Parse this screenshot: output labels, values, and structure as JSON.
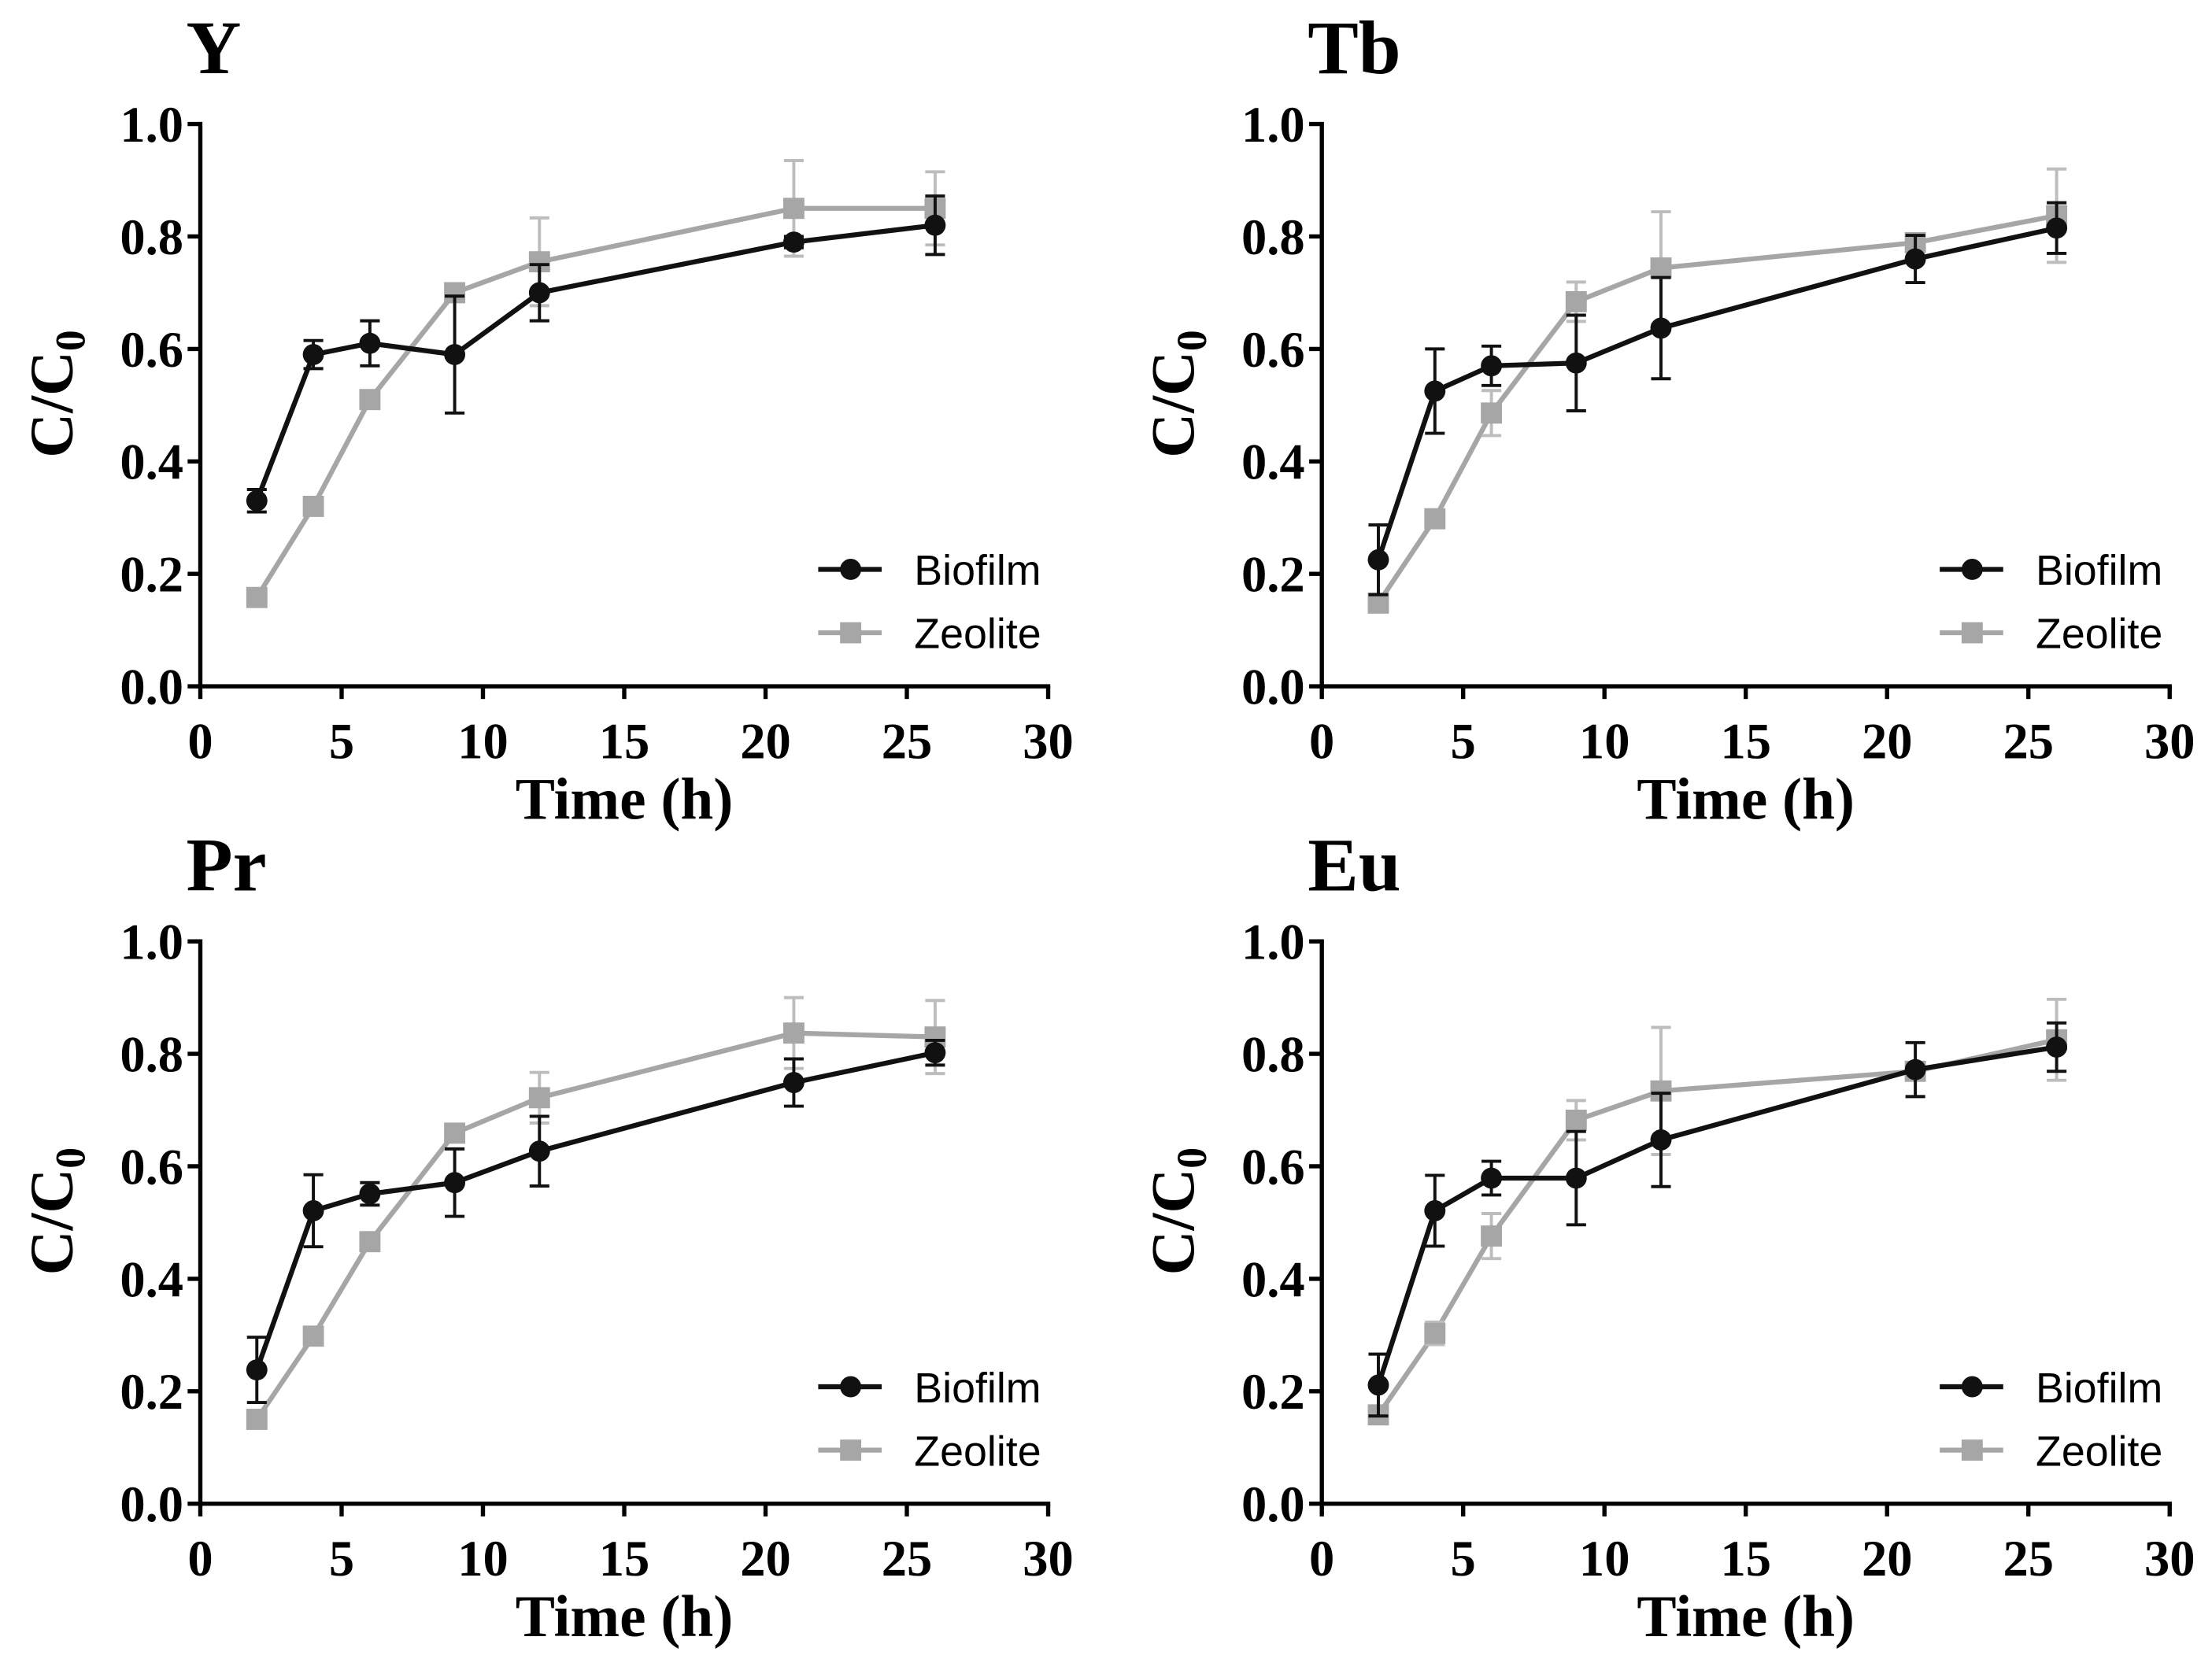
{
  "chart_data": [
    {
      "type": "line",
      "title": "Y",
      "xlabel": "Time (h)",
      "ylabel": {
        "text": "C/C",
        "subscript": "0"
      },
      "xlim": [
        0,
        30
      ],
      "ylim": [
        0,
        1
      ],
      "xticks": [
        0,
        5,
        10,
        15,
        20,
        25,
        30
      ],
      "xtick_labels": [
        "0",
        "5",
        "10",
        "15",
        "20",
        "25",
        "30"
      ],
      "yticks": [
        0,
        0.2,
        0.4,
        0.6,
        0.8,
        1.0
      ],
      "ytick_labels": [
        "0.0",
        "0.2",
        "0.4",
        "0.6",
        "0.8",
        "1.0"
      ],
      "grid": false,
      "legend": "bottom-right",
      "x": [
        2,
        4,
        6,
        9,
        12,
        21,
        26
      ],
      "series": [
        {
          "name": "Biofilm",
          "color": "#111111",
          "error_color": "#111111",
          "marker": "circle",
          "values": [
            0.33,
            0.59,
            0.61,
            0.59,
            0.7,
            0.79,
            0.82
          ],
          "err": [
            0.02,
            0.025,
            0.04,
            0.104,
            0.05,
            0.01,
            0.052
          ]
        },
        {
          "name": "Zeolite",
          "color": "#a6a6a6",
          "error_color": "#bdbdbd",
          "marker": "square",
          "values": [
            0.158,
            0.32,
            0.51,
            0.7,
            0.755,
            0.85,
            0.85
          ],
          "err": [
            0.01,
            0.01,
            0.012,
            0.012,
            0.078,
            0.085,
            0.065
          ]
        }
      ]
    },
    {
      "type": "line",
      "title": "Tb",
      "xlabel": "Time (h)",
      "ylabel": {
        "text": "C/C",
        "subscript": "0"
      },
      "xlim": [
        0,
        30
      ],
      "ylim": [
        0,
        1
      ],
      "xticks": [
        0,
        5,
        10,
        15,
        20,
        25,
        30
      ],
      "xtick_labels": [
        "0",
        "5",
        "10",
        "15",
        "20",
        "25",
        "30"
      ],
      "yticks": [
        0,
        0.2,
        0.4,
        0.6,
        0.8,
        1.0
      ],
      "ytick_labels": [
        "0.0",
        "0.2",
        "0.4",
        "0.6",
        "0.8",
        "1.0"
      ],
      "grid": false,
      "legend": "bottom-right",
      "x": [
        2,
        4,
        6,
        9,
        12,
        21,
        26
      ],
      "series": [
        {
          "name": "Biofilm",
          "color": "#111111",
          "error_color": "#111111",
          "marker": "circle",
          "values": [
            0.225,
            0.525,
            0.57,
            0.575,
            0.637,
            0.76,
            0.815
          ],
          "err": [
            0.062,
            0.075,
            0.035,
            0.085,
            0.09,
            0.042,
            0.045
          ]
        },
        {
          "name": "Zeolite",
          "color": "#a6a6a6",
          "error_color": "#bdbdbd",
          "marker": "square",
          "values": [
            0.148,
            0.298,
            0.486,
            0.684,
            0.744,
            0.789,
            0.837
          ],
          "err": [
            0.01,
            0.015,
            0.04,
            0.035,
            0.1,
            0.01,
            0.083
          ]
        }
      ]
    },
    {
      "type": "line",
      "title": "Pr",
      "xlabel": "Time (h)",
      "ylabel": {
        "text": "C/C",
        "subscript": "0"
      },
      "xlim": [
        0,
        30
      ],
      "ylim": [
        0,
        1
      ],
      "xticks": [
        0,
        5,
        10,
        15,
        20,
        25,
        30
      ],
      "xtick_labels": [
        "0",
        "5",
        "10",
        "15",
        "20",
        "25",
        "30"
      ],
      "yticks": [
        0,
        0.2,
        0.4,
        0.6,
        0.8,
        1.0
      ],
      "ytick_labels": [
        "0.0",
        "0.2",
        "0.4",
        "0.6",
        "0.8",
        "1.0"
      ],
      "grid": false,
      "legend": "bottom-right",
      "x": [
        2,
        4,
        6,
        9,
        12,
        21,
        26
      ],
      "series": [
        {
          "name": "Biofilm",
          "color": "#111111",
          "error_color": "#111111",
          "marker": "circle",
          "values": [
            0.238,
            0.521,
            0.551,
            0.571,
            0.627,
            0.749,
            0.802
          ],
          "err": [
            0.058,
            0.064,
            0.02,
            0.06,
            0.062,
            0.042,
            0.022
          ]
        },
        {
          "name": "Zeolite",
          "color": "#a6a6a6",
          "error_color": "#bdbdbd",
          "marker": "square",
          "values": [
            0.15,
            0.298,
            0.466,
            0.659,
            0.722,
            0.837,
            0.83
          ],
          "err": [
            0.01,
            0.01,
            0.01,
            0.01,
            0.045,
            0.063,
            0.065
          ]
        }
      ]
    },
    {
      "type": "line",
      "title": "Eu",
      "xlabel": "Time (h)",
      "ylabel": {
        "text": "C/C",
        "subscript": "0"
      },
      "xlim": [
        0,
        30
      ],
      "ylim": [
        0,
        1
      ],
      "xticks": [
        0,
        5,
        10,
        15,
        20,
        25,
        30
      ],
      "xtick_labels": [
        "0",
        "5",
        "10",
        "15",
        "20",
        "25",
        "30"
      ],
      "yticks": [
        0,
        0.2,
        0.4,
        0.6,
        0.8,
        1.0
      ],
      "ytick_labels": [
        "0.0",
        "0.2",
        "0.4",
        "0.6",
        "0.8",
        "1.0"
      ],
      "grid": false,
      "legend": "bottom-right",
      "x": [
        2,
        4,
        6,
        9,
        12,
        21,
        26
      ],
      "series": [
        {
          "name": "Biofilm",
          "color": "#111111",
          "error_color": "#111111",
          "marker": "circle",
          "values": [
            0.211,
            0.521,
            0.579,
            0.579,
            0.647,
            0.772,
            0.812
          ],
          "err": [
            0.055,
            0.063,
            0.03,
            0.083,
            0.083,
            0.048,
            0.043
          ]
        },
        {
          "name": "Zeolite",
          "color": "#a6a6a6",
          "error_color": "#bdbdbd",
          "marker": "square",
          "values": [
            0.158,
            0.303,
            0.476,
            0.682,
            0.734,
            0.769,
            0.825
          ],
          "err": [
            0.01,
            0.02,
            0.04,
            0.035,
            0.113,
            0.01,
            0.072
          ]
        }
      ]
    }
  ]
}
